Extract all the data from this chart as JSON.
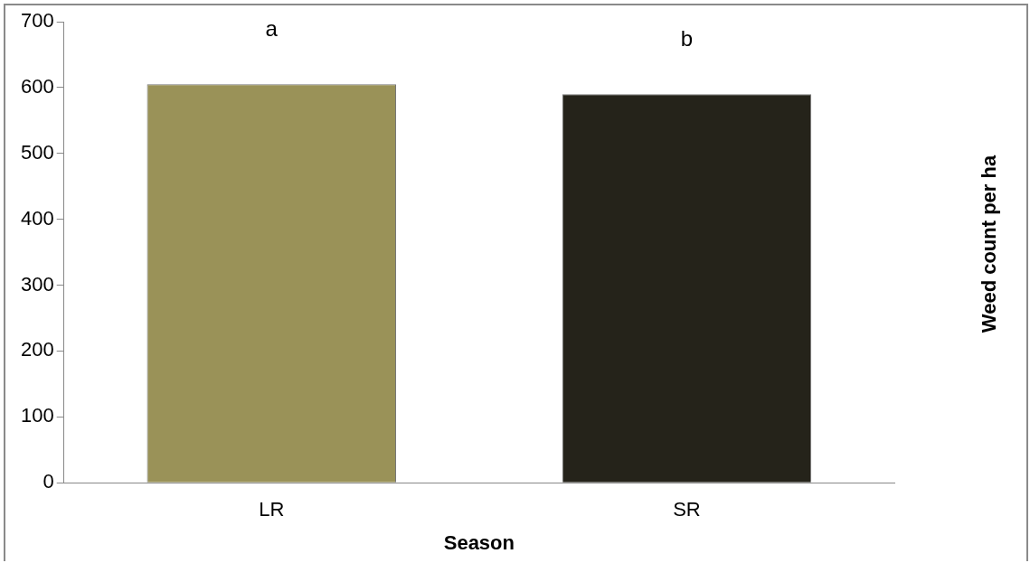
{
  "chart_data": {
    "type": "bar",
    "xlabel": "Season",
    "ylabel": "Weed count per ha",
    "categories": [
      "LR",
      "SR"
    ],
    "series": [
      {
        "colors": [
          "#9a9258",
          "#25231a"
        ],
        "values": [
          605,
          590
        ]
      }
    ],
    "ylim": [
      0,
      700
    ],
    "yticks": [
      0,
      100,
      200,
      300,
      400,
      500,
      600,
      700
    ],
    "grid": false,
    "legend": false,
    "annotations": [
      "a",
      "b"
    ]
  }
}
